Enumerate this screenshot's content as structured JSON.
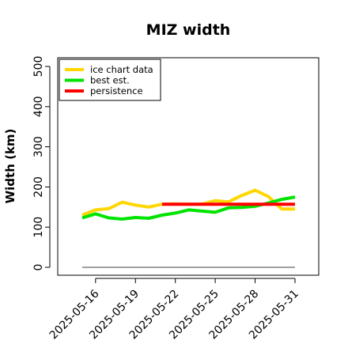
{
  "chart_data": {
    "type": "line",
    "title": "MIZ width",
    "ylabel": "Width (km)",
    "xlabel": "",
    "ylim": [
      0,
      500
    ],
    "yticks": [
      0,
      100,
      200,
      300,
      400,
      500
    ],
    "x": [
      "2025-05-15",
      "2025-05-16",
      "2025-05-17",
      "2025-05-18",
      "2025-05-19",
      "2025-05-20",
      "2025-05-21",
      "2025-05-22",
      "2025-05-23",
      "2025-05-24",
      "2025-05-25",
      "2025-05-26",
      "2025-05-27",
      "2025-05-28",
      "2025-05-29",
      "2025-05-30",
      "2025-05-31"
    ],
    "xtick_labels": [
      "2025-05-16",
      "2025-05-19",
      "2025-05-22",
      "2025-05-25",
      "2025-05-28",
      "2025-05-31"
    ],
    "grid": false,
    "legend_position": "top-left",
    "series": [
      {
        "name": "ice chart data",
        "color": "#FFD700",
        "values": [
          130,
          143,
          146,
          162,
          155,
          150,
          157,
          158,
          157,
          157,
          166,
          163,
          179,
          192,
          176,
          145,
          145
        ]
      },
      {
        "name": "best est.",
        "color": "#00E400",
        "values": [
          123,
          133,
          123,
          120,
          124,
          122,
          130,
          135,
          143,
          140,
          137,
          148,
          149,
          152,
          160,
          169,
          175
        ]
      },
      {
        "name": "persistence",
        "color": "#FF0000",
        "values": [
          null,
          null,
          null,
          null,
          null,
          null,
          157,
          157,
          157,
          157,
          157,
          157,
          157,
          157,
          157,
          157,
          157
        ]
      },
      {
        "name": "",
        "color": "#808080",
        "values": [
          0,
          0,
          0,
          0,
          0,
          0,
          0,
          0,
          0,
          0,
          0,
          0,
          0,
          0,
          0,
          0,
          0
        ]
      }
    ]
  }
}
